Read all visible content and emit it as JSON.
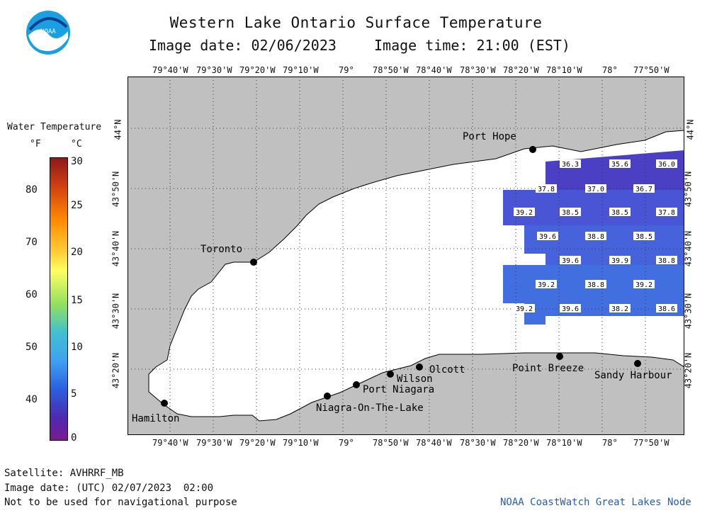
{
  "title": "Western Lake Ontario Surface Temperature",
  "image_date": "Image date: 02/06/2023",
  "image_time": "Image time: 21:00 (EST)",
  "logo": {
    "text": "NOAA",
    "icon": "noaa-logo-icon"
  },
  "lon_ticks": [
    "79°40'W",
    "79°30'W",
    "79°20'W",
    "79°10'W",
    "79°",
    "78°50'W",
    "78°40'W",
    "78°30'W",
    "78°20'W",
    "78°10'W",
    "78°",
    "77°50'W"
  ],
  "lat_ticks": [
    "44°N",
    "43°50'N",
    "43°40'N",
    "43°30'N",
    "43°20'N"
  ],
  "legend": {
    "title": "Water Temperature",
    "unit_f": "°F",
    "unit_c": "°C",
    "f_ticks": [
      "80",
      "70",
      "60",
      "50",
      "40"
    ],
    "c_ticks": [
      "30",
      "25",
      "20",
      "15",
      "10",
      "5",
      "0"
    ]
  },
  "cities": [
    {
      "name": "Port Hope"
    },
    {
      "name": "Toronto"
    },
    {
      "name": "Hamilton"
    },
    {
      "name": "Niagra-On-The-Lake"
    },
    {
      "name": "Port Niagara"
    },
    {
      "name": "Wilson"
    },
    {
      "name": "Olcott"
    },
    {
      "name": "Point Breeze"
    },
    {
      "name": "Sandy Harbour"
    }
  ],
  "temperature_labels": [
    "36.3",
    "35.6",
    "36.0",
    "37.8",
    "37.0",
    "36.7",
    "39.2",
    "38.5",
    "38.5",
    "37.8",
    "39.6",
    "38.8",
    "38.5",
    "39.6",
    "39.9",
    "38.8",
    "39.2",
    "38.8",
    "39.2",
    "39.2",
    "39.6",
    "38.2",
    "38.6"
  ],
  "footer": {
    "satellite": "Satellite: AVHRRF_MB",
    "utc_date": "Image date: (UTC) 02/07/2023  02:00",
    "disclaimer": "Not to be used for navigational purpose",
    "credit": "NOAA CoastWatch Great Lakes Node"
  },
  "colors": {
    "land": "#c0c0c0",
    "water": "#ffffff",
    "temp_low": "#4b3fc4",
    "temp_high": "#3a6fe0"
  }
}
